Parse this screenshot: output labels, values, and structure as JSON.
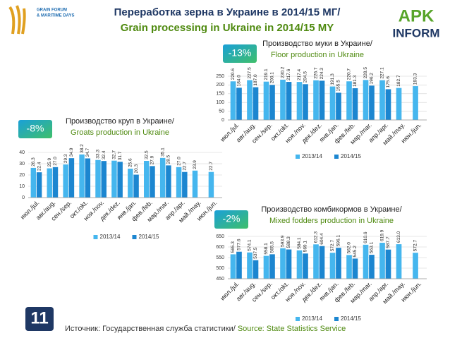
{
  "header": {
    "title": "Переработка зерна в Украине в 2014/15 МГ/",
    "subtitle": "Grain processing in Ukraine in 2014/15 MY",
    "logo_left": [
      "GRAIN FORUM",
      "& MARITIME DAYS"
    ],
    "logo_right": [
      "APK",
      "INFORM"
    ]
  },
  "footer": {
    "page": "11",
    "source_ru": "Источник: Государственная служба статистики/ ",
    "source_en": "Source: State Statistics Service"
  },
  "chart_data": [
    {
      "type": "bar",
      "title": "Производство муки в Украине/",
      "subtitle": "Floor production in Ukraine",
      "badge": "-13%",
      "categories": [
        "июл./jul.",
        "авг./aug.",
        "сен./sep.",
        "окт./okt.",
        "ноя./nov.",
        "дек./dez.",
        "янв./jan.",
        "фев./feb.",
        "мар./mar.",
        "апр./apr.",
        "май./may.",
        "июн./jun."
      ],
      "series": [
        {
          "name": "2013/14",
          "color": "#45b6ee",
          "values": [
            220.6,
            227.5,
            219.1,
            230.2,
            217.4,
            226.7,
            191.3,
            220.7,
            228.5,
            227.1,
            182.7,
            193.3
          ],
          "value_labels": [
            "220.6",
            "227.5",
            "219.1",
            "230.2",
            "217.4",
            "226.7",
            "191.3",
            "220.7",
            "228.5",
            "227.1",
            "182.7",
            "193.3"
          ]
        },
        {
          "name": "2014/15",
          "color": "#1c86d0",
          "values": [
            184.0,
            187.0,
            200.1,
            217.6,
            204.5,
            224.3,
            155.5,
            181.3,
            196.2,
            175.6,
            null,
            null
          ],
          "value_labels": [
            "184.0",
            "187.0",
            "200.1",
            "217.6",
            "204.5",
            "224.3",
            "155.5",
            "181.3",
            "196.2",
            "175.6",
            null,
            null
          ]
        }
      ],
      "ylim": [
        0,
        250
      ],
      "yticks": [
        0,
        50,
        100,
        150,
        200,
        250
      ],
      "legend": "bottom"
    },
    {
      "type": "bar",
      "title": "Производство круп в Украине/",
      "subtitle": "Groats production in Ukraine",
      "badge": "-8%",
      "categories": [
        "июл./jul.",
        "авг./aug.",
        "сен./sep.",
        "окт./okt.",
        "ноя./nov.",
        "дек./dez.",
        "янв./jan.",
        "фев./feb.",
        "мар./mar.",
        "апр./apr.",
        "май./may.",
        "июн./jun."
      ],
      "series": [
        {
          "name": "2013/14",
          "color": "#45b6ee",
          "values": [
            26.3,
            25.9,
            29.3,
            38.2,
            33.3,
            32.7,
            25.6,
            32.5,
            35.1,
            27.0,
            23.9,
            22.7
          ],
          "value_labels": [
            "26.3",
            "25.9",
            "29.3",
            "38.2",
            "33.3",
            "32.7",
            "25.6",
            "32.5",
            "35.1",
            "27.0",
            "23.9",
            "22.7"
          ]
        },
        {
          "name": "2014/15",
          "color": "#1c86d0",
          "values": [
            22.4,
            27.0,
            34.9,
            34.7,
            32.4,
            31.7,
            20.3,
            27.9,
            28.5,
            22.7,
            null,
            null
          ],
          "value_labels": [
            "22.4",
            "27.0",
            "34.9",
            "34.7",
            "32.4",
            "31.7",
            "20.3",
            "27.9",
            "28.5",
            "22.7",
            null,
            null
          ]
        }
      ],
      "ylim": [
        0,
        40
      ],
      "yticks": [
        0,
        10,
        20,
        30,
        40
      ],
      "legend": "bottom"
    },
    {
      "type": "bar",
      "title": "Производство комбикормов в Украине/",
      "subtitle": "Mixed fodders production in Ukraine",
      "badge": "-2%",
      "categories": [
        "июл./jul.",
        "авг./aug.",
        "сен./sep.",
        "окт./okt.",
        "ноя./nov.",
        "дек./dez.",
        "янв./jan.",
        "фев./feb.",
        "мар./mar.",
        "апр./apr.",
        "май./may.",
        "июн./jun."
      ],
      "series": [
        {
          "name": "2013/14",
          "color": "#45b6ee",
          "values": [
            565.3,
            574.1,
            558.1,
            593.9,
            584.1,
            612.3,
            572.7,
            562.0,
            610.6,
            619.9,
            613.0,
            572.7
          ],
          "value_labels": [
            "565.3",
            "574.1",
            "558.1",
            "593.9",
            "584.1",
            "612.3",
            "572.7",
            "562.0",
            "610.6",
            "619.9",
            "613.0",
            "572.7"
          ]
        },
        {
          "name": "2014/15",
          "color": "#1c86d0",
          "values": [
            577.6,
            537.5,
            565.5,
            588.3,
            569.1,
            604.4,
            596.1,
            545.2,
            563.1,
            587.7,
            null,
            null
          ],
          "value_labels": [
            "577.6",
            "537.5",
            "565.5",
            "588.3",
            "569.1",
            "604.4",
            "596.1",
            "545.2",
            "563.1",
            "587.7",
            null,
            null
          ]
        }
      ],
      "ylim": [
        450,
        650
      ],
      "yticks": [
        450,
        500,
        550,
        600,
        650
      ],
      "legend": "bottom"
    }
  ]
}
